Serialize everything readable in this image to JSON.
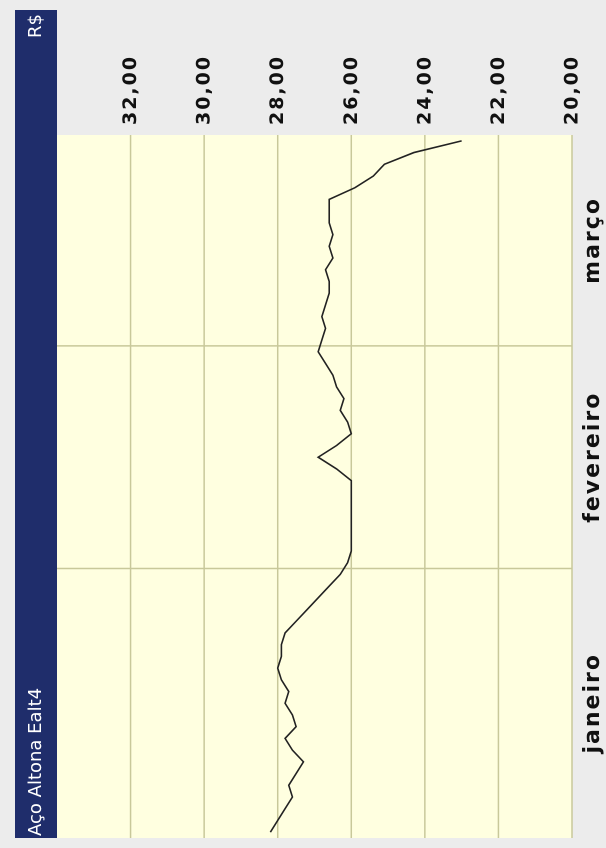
{
  "chart_data": {
    "type": "line",
    "title": "Aço Altona Ealt4",
    "ylabel": "R$",
    "categories": [
      "janeiro",
      "fevereiro",
      "março"
    ],
    "values": [
      [
        28.2,
        28.0,
        27.8,
        27.6,
        27.7,
        27.5,
        27.3,
        27.6,
        27.8,
        27.5,
        27.6,
        27.8,
        27.7,
        27.9,
        28.0,
        27.9,
        27.9,
        27.8,
        27.5,
        27.2,
        26.9,
        26.6,
        26.3
      ],
      [
        26.1,
        26.0,
        26.0,
        26.0,
        26.0,
        26.0,
        26.0,
        26.0,
        26.4,
        26.9,
        26.4,
        26.0,
        26.1,
        26.3,
        26.2,
        26.4,
        26.5,
        26.7,
        26.9
      ],
      [
        26.8,
        26.7,
        26.8,
        26.7,
        26.6,
        26.6,
        26.7,
        26.5,
        26.6,
        26.5,
        26.6,
        26.6,
        26.6,
        25.9,
        25.4,
        25.1,
        24.3,
        23.0
      ]
    ],
    "color": "#222222",
    "ylim": [
      20,
      34
    ],
    "yticks": [
      {
        "value": 20,
        "label": "20,00"
      },
      {
        "value": 22,
        "label": "22,00"
      },
      {
        "value": 24,
        "label": "24,00"
      },
      {
        "value": 26,
        "label": "26,00"
      },
      {
        "value": 28,
        "label": "28,00"
      },
      {
        "value": 30,
        "label": "30,00"
      },
      {
        "value": 32,
        "label": "32,00"
      }
    ],
    "grid": true
  }
}
